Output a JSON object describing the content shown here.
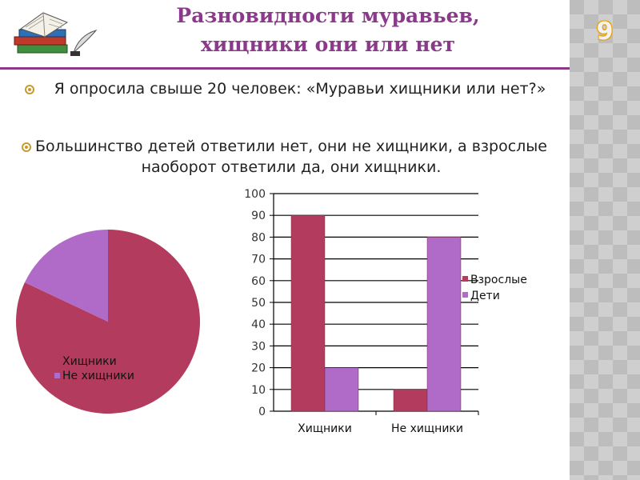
{
  "slide": {
    "title": "Разновидности муравьев,\nхищники они или нет",
    "page_number": "9",
    "bullets": [
      "Я опросила  свыше 20 человек: «Муравьи хищники или нет?»",
      "Большинство детей ответили нет, они не хищники, а взрослые наоборот ответили да, они хищники."
    ]
  },
  "colors": {
    "accent": "#8b3a8b",
    "series_adults": "#b33c5e",
    "series_children": "#b06bc8",
    "bullet": "#c89a2f"
  },
  "chart_data": [
    {
      "type": "pie",
      "categories": [
        "Хищники",
        "Не хищники"
      ],
      "values": [
        82,
        18
      ],
      "colors": [
        "#b33c5e",
        "#b06bc8"
      ],
      "legend_position": "inside-bottom-left"
    },
    {
      "type": "bar",
      "categories": [
        "Хищники",
        "Не хищники"
      ],
      "series": [
        {
          "name": "Взрослые",
          "values": [
            90,
            10
          ],
          "color": "#b33c5e"
        },
        {
          "name": "Дети",
          "values": [
            20,
            80
          ],
          "color": "#b06bc8"
        }
      ],
      "ylim": [
        0,
        100
      ],
      "yticks": [
        0,
        10,
        20,
        30,
        40,
        50,
        60,
        70,
        80,
        90,
        100
      ],
      "grid": true,
      "legend_position": "right"
    }
  ]
}
